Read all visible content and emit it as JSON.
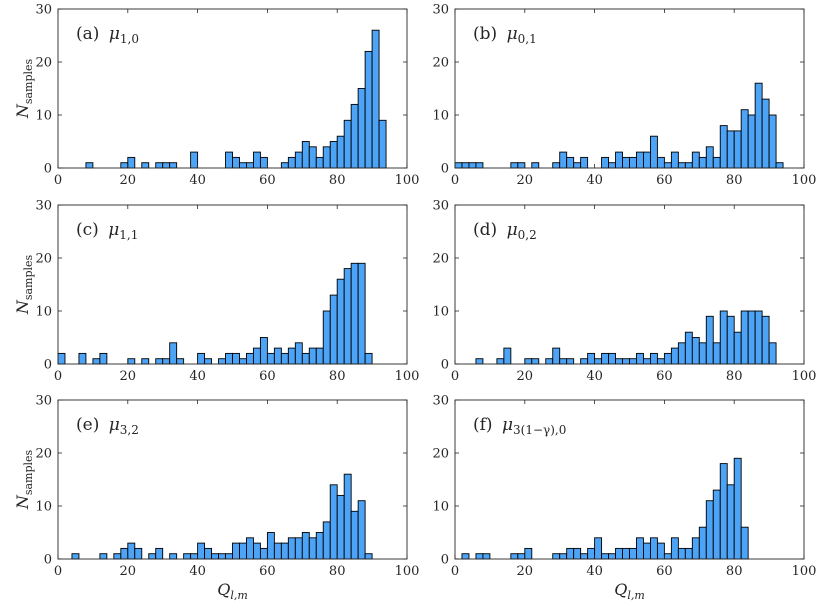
{
  "colors": {
    "bar_fill": "#4da3f5",
    "bar_edge": "#000000",
    "axes": "#262626",
    "grid": "#e6e6e6"
  },
  "chart_data": [
    {
      "type": "bar",
      "panel": "a",
      "label": "(a) μ1,0",
      "label_parts": {
        "prefix": "(a)",
        "symbol": "μ",
        "subscript": "1,0"
      },
      "bin_width": 2,
      "xlim": [
        0,
        100
      ],
      "ylim": [
        0,
        30
      ],
      "xticks": [
        0,
        20,
        40,
        60,
        80,
        100
      ],
      "yticks": [
        0,
        10,
        20,
        30
      ],
      "ylabel": "Nsamples",
      "xlabel": "",
      "bins": [
        [
          8,
          1
        ],
        [
          18,
          1
        ],
        [
          20,
          2
        ],
        [
          24,
          1
        ],
        [
          28,
          1
        ],
        [
          30,
          1
        ],
        [
          32,
          1
        ],
        [
          38,
          3
        ],
        [
          48,
          3
        ],
        [
          50,
          2
        ],
        [
          52,
          1
        ],
        [
          54,
          1
        ],
        [
          56,
          3
        ],
        [
          58,
          2
        ],
        [
          64,
          1
        ],
        [
          66,
          2
        ],
        [
          68,
          3
        ],
        [
          70,
          5
        ],
        [
          72,
          4
        ],
        [
          74,
          2
        ],
        [
          76,
          4
        ],
        [
          78,
          5
        ],
        [
          80,
          6
        ],
        [
          82,
          9
        ],
        [
          84,
          12
        ],
        [
          86,
          15
        ],
        [
          88,
          22
        ],
        [
          90,
          26
        ],
        [
          92,
          9
        ]
      ]
    },
    {
      "type": "bar",
      "panel": "b",
      "label": "(b) μ0,1",
      "label_parts": {
        "prefix": "(b)",
        "symbol": "μ",
        "subscript": "0,1"
      },
      "bin_width": 2,
      "xlim": [
        0,
        100
      ],
      "ylim": [
        0,
        30
      ],
      "xticks": [
        0,
        20,
        40,
        60,
        80,
        100
      ],
      "yticks": [
        0,
        10,
        20,
        30
      ],
      "ylabel": "",
      "xlabel": "",
      "bins": [
        [
          0,
          1
        ],
        [
          2,
          1
        ],
        [
          4,
          1
        ],
        [
          6,
          1
        ],
        [
          16,
          1
        ],
        [
          18,
          1
        ],
        [
          22,
          1
        ],
        [
          28,
          1
        ],
        [
          30,
          3
        ],
        [
          32,
          2
        ],
        [
          34,
          1
        ],
        [
          36,
          2
        ],
        [
          42,
          2
        ],
        [
          44,
          1
        ],
        [
          46,
          3
        ],
        [
          48,
          2
        ],
        [
          50,
          2
        ],
        [
          52,
          3
        ],
        [
          54,
          3
        ],
        [
          56,
          6
        ],
        [
          58,
          2
        ],
        [
          60,
          1
        ],
        [
          62,
          3
        ],
        [
          64,
          1
        ],
        [
          66,
          1
        ],
        [
          68,
          3
        ],
        [
          70,
          2
        ],
        [
          72,
          4
        ],
        [
          74,
          2
        ],
        [
          76,
          8
        ],
        [
          78,
          7
        ],
        [
          80,
          7
        ],
        [
          82,
          11
        ],
        [
          84,
          10
        ],
        [
          86,
          16
        ],
        [
          88,
          13
        ],
        [
          90,
          10
        ],
        [
          92,
          1
        ]
      ]
    },
    {
      "type": "bar",
      "panel": "c",
      "label": "(c) μ1,1",
      "label_parts": {
        "prefix": "(c)",
        "symbol": "μ",
        "subscript": "1,1"
      },
      "bin_width": 2,
      "xlim": [
        0,
        100
      ],
      "ylim": [
        0,
        30
      ],
      "xticks": [
        0,
        20,
        40,
        60,
        80,
        100
      ],
      "yticks": [
        0,
        10,
        20,
        30
      ],
      "ylabel": "Nsamples",
      "xlabel": "",
      "bins": [
        [
          0,
          2
        ],
        [
          6,
          2
        ],
        [
          10,
          1
        ],
        [
          12,
          2
        ],
        [
          20,
          1
        ],
        [
          24,
          1
        ],
        [
          28,
          1
        ],
        [
          30,
          1
        ],
        [
          32,
          4
        ],
        [
          34,
          1
        ],
        [
          40,
          2
        ],
        [
          42,
          1
        ],
        [
          46,
          1
        ],
        [
          48,
          2
        ],
        [
          50,
          2
        ],
        [
          52,
          1
        ],
        [
          54,
          2
        ],
        [
          56,
          3
        ],
        [
          58,
          5
        ],
        [
          60,
          2
        ],
        [
          62,
          3
        ],
        [
          64,
          2
        ],
        [
          66,
          3
        ],
        [
          68,
          4
        ],
        [
          70,
          2
        ],
        [
          72,
          3
        ],
        [
          74,
          3
        ],
        [
          76,
          10
        ],
        [
          78,
          13
        ],
        [
          80,
          16
        ],
        [
          82,
          18
        ],
        [
          84,
          19
        ],
        [
          86,
          19
        ],
        [
          88,
          2
        ]
      ]
    },
    {
      "type": "bar",
      "panel": "d",
      "label": "(d) μ0,2",
      "label_parts": {
        "prefix": "(d)",
        "symbol": "μ",
        "subscript": "0,2"
      },
      "bin_width": 2,
      "xlim": [
        0,
        100
      ],
      "ylim": [
        0,
        30
      ],
      "xticks": [
        0,
        20,
        40,
        60,
        80,
        100
      ],
      "yticks": [
        0,
        10,
        20,
        30
      ],
      "ylabel": "",
      "xlabel": "",
      "bins": [
        [
          6,
          1
        ],
        [
          12,
          1
        ],
        [
          14,
          3
        ],
        [
          20,
          1
        ],
        [
          22,
          1
        ],
        [
          26,
          1
        ],
        [
          28,
          3
        ],
        [
          30,
          1
        ],
        [
          32,
          1
        ],
        [
          36,
          1
        ],
        [
          38,
          2
        ],
        [
          40,
          1
        ],
        [
          42,
          2
        ],
        [
          44,
          2
        ],
        [
          46,
          1
        ],
        [
          48,
          1
        ],
        [
          50,
          1
        ],
        [
          52,
          2
        ],
        [
          54,
          1
        ],
        [
          56,
          2
        ],
        [
          58,
          1
        ],
        [
          60,
          2
        ],
        [
          62,
          3
        ],
        [
          64,
          4
        ],
        [
          66,
          6
        ],
        [
          68,
          5
        ],
        [
          70,
          4
        ],
        [
          72,
          9
        ],
        [
          74,
          4
        ],
        [
          76,
          10
        ],
        [
          78,
          9
        ],
        [
          80,
          6
        ],
        [
          82,
          10
        ],
        [
          84,
          10
        ],
        [
          86,
          10
        ],
        [
          88,
          9
        ],
        [
          90,
          4
        ]
      ]
    },
    {
      "type": "bar",
      "panel": "e",
      "label": "(e) μ3,2",
      "label_parts": {
        "prefix": "(e)",
        "symbol": "μ",
        "subscript": "3,2"
      },
      "bin_width": 2,
      "xlim": [
        0,
        100
      ],
      "ylim": [
        0,
        30
      ],
      "xticks": [
        0,
        20,
        40,
        60,
        80,
        100
      ],
      "yticks": [
        0,
        10,
        20,
        30
      ],
      "ylabel": "Nsamples",
      "xlabel": "Ql,m",
      "bins": [
        [
          4,
          1
        ],
        [
          12,
          1
        ],
        [
          16,
          1
        ],
        [
          18,
          2
        ],
        [
          20,
          3
        ],
        [
          22,
          2
        ],
        [
          26,
          1
        ],
        [
          28,
          2
        ],
        [
          32,
          1
        ],
        [
          36,
          1
        ],
        [
          38,
          1
        ],
        [
          40,
          3
        ],
        [
          42,
          2
        ],
        [
          44,
          1
        ],
        [
          46,
          1
        ],
        [
          48,
          1
        ],
        [
          50,
          3
        ],
        [
          52,
          3
        ],
        [
          54,
          4
        ],
        [
          56,
          3
        ],
        [
          58,
          2
        ],
        [
          60,
          5
        ],
        [
          62,
          3
        ],
        [
          64,
          3
        ],
        [
          66,
          4
        ],
        [
          68,
          4
        ],
        [
          70,
          5
        ],
        [
          72,
          4
        ],
        [
          74,
          5
        ],
        [
          76,
          7
        ],
        [
          78,
          14
        ],
        [
          80,
          12
        ],
        [
          82,
          16
        ],
        [
          84,
          9
        ],
        [
          86,
          11
        ],
        [
          88,
          1
        ]
      ]
    },
    {
      "type": "bar",
      "panel": "f",
      "label": "(f) μ3(1−γ),0",
      "label_parts": {
        "prefix": "(f)",
        "symbol": "μ",
        "subscript": "3(1−γ),0"
      },
      "bin_width": 2,
      "xlim": [
        0,
        100
      ],
      "ylim": [
        0,
        30
      ],
      "xticks": [
        0,
        20,
        40,
        60,
        80,
        100
      ],
      "yticks": [
        0,
        10,
        20,
        30
      ],
      "ylabel": "",
      "xlabel": "Ql,m",
      "bins": [
        [
          2,
          1
        ],
        [
          6,
          1
        ],
        [
          8,
          1
        ],
        [
          16,
          1
        ],
        [
          18,
          1
        ],
        [
          20,
          2
        ],
        [
          28,
          1
        ],
        [
          30,
          1
        ],
        [
          32,
          2
        ],
        [
          34,
          2
        ],
        [
          36,
          1
        ],
        [
          38,
          2
        ],
        [
          40,
          4
        ],
        [
          42,
          1
        ],
        [
          44,
          1
        ],
        [
          46,
          2
        ],
        [
          48,
          2
        ],
        [
          50,
          2
        ],
        [
          52,
          4
        ],
        [
          54,
          3
        ],
        [
          56,
          4
        ],
        [
          58,
          3
        ],
        [
          60,
          1
        ],
        [
          62,
          4
        ],
        [
          64,
          2
        ],
        [
          66,
          2
        ],
        [
          68,
          4
        ],
        [
          70,
          6
        ],
        [
          72,
          11
        ],
        [
          74,
          13
        ],
        [
          76,
          18
        ],
        [
          78,
          14
        ],
        [
          80,
          19
        ],
        [
          82,
          6
        ]
      ]
    }
  ]
}
